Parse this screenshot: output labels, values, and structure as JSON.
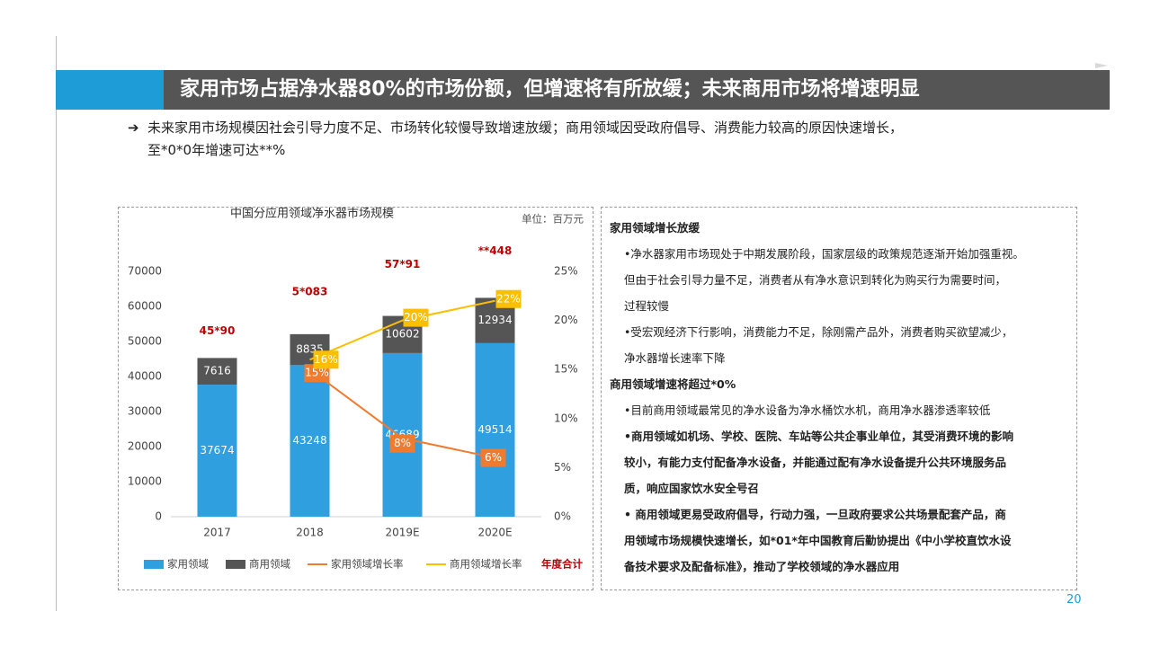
{
  "header": {
    "title": "家用市场占据净水器80%的市场份额，但增速将有所放缓；未来商用市场将增速明显"
  },
  "summary": {
    "line1": "未来家用市场规模因社会引导力度不足、市场转化较慢导致增速放缓；商用领域因受政府倡导、消费能力较高的原因快速增长，",
    "line2": "至*0*0年增速可达**%"
  },
  "chart_data": {
    "type": "bar",
    "stacked": true,
    "title": "中国分应用领域净水器市场规模",
    "unit": "单位：百万元",
    "categories": [
      "2017",
      "2018",
      "2019E",
      "2020E"
    ],
    "ylim": [
      0,
      70000
    ],
    "yticks": [
      "0",
      "10000",
      "20000",
      "30000",
      "40000",
      "50000",
      "60000",
      "70000"
    ],
    "y2lim": [
      0,
      25
    ],
    "y2ticks": [
      "0%",
      "5%",
      "10%",
      "15%",
      "20%",
      "25%"
    ],
    "series": [
      {
        "name": "家用领域",
        "values": [
          37674,
          43248,
          46689,
          49514
        ],
        "labels": [
          "37674",
          "43248",
          "46689",
          "49514"
        ],
        "color": "#2f9fe0"
      },
      {
        "name": "商用领域",
        "values": [
          7616,
          8835,
          10602,
          12934
        ],
        "labels": [
          "7616",
          "8835",
          "10602",
          "12934"
        ],
        "color": "#555555"
      }
    ],
    "lines": [
      {
        "name": "家用领域增长率",
        "x_index": [
          1,
          2,
          3
        ],
        "values": [
          15,
          8,
          6
        ],
        "labels": [
          "15%",
          "8%",
          "6%"
        ],
        "color": "#f07b2e"
      },
      {
        "name": "商用领域增长率",
        "x_index": [
          1,
          2,
          3
        ],
        "values": [
          16,
          20,
          22
        ],
        "labels": [
          "16%",
          "20%",
          "22%"
        ],
        "color": "#fbbf00"
      }
    ],
    "totals": {
      "name": "年度合计",
      "labels": [
        "45*90",
        "5*083",
        "57*91",
        "**448"
      ],
      "color": "#c00000"
    },
    "grid": false,
    "legend_position": "bottom"
  },
  "analysis": {
    "h1": "家用领域增长放缓",
    "p1": "•净水器家用市场现处于中期发展阶段，国家层级的政策规范逐渐开始加强重视。",
    "p1b": "但由于社会引导力量不足，消费者从有净水意识到转化为购买行为需要时间，",
    "p1c": "过程较慢",
    "p2": "•受宏观经济下行影响，消费能力不足，除刚需产品外，消费者购买欲望减少，",
    "p2b": "净水器增长速率下降",
    "h2": "商用领域增速将超过*0%",
    "p3": "•目前商用领域最常见的净水设备为净水桶饮水机，商用净水器渗透率较低",
    "p4": "•商用领域如机场、学校、医院、车站等公共企事业单位，其受消费环境的影响",
    "p4b": "较小，有能力支付配备净水设备，并能通过配有净水设备提升公共环境服务品",
    "p4c": "质，响应国家饮水安全号召",
    "p5": "• 商用领域更易受政府倡导，行动力强，一旦政府要求公共场景配套产品，商",
    "p5b": "用领域市场规模快速增长，如*01*年中国教育后勤协提出《中小学校直饮水设",
    "p5c": "备技术要求及配备标准》，推动了学校领域的净水器应用"
  },
  "page_number": "20",
  "colors": {
    "accent": "#1e9cd8",
    "title_bar": "#555555",
    "total_label": "#c00000"
  }
}
